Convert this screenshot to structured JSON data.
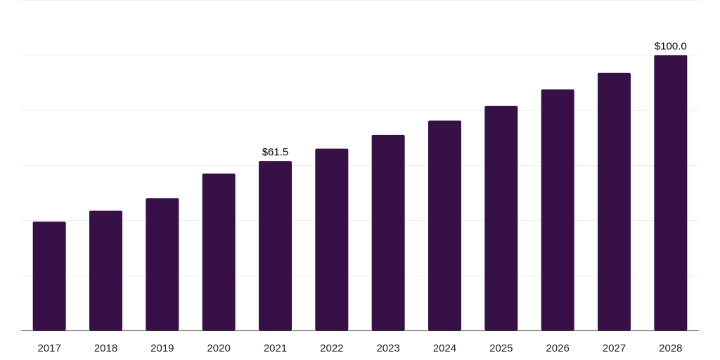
{
  "chart_data": {
    "type": "bar",
    "title": "",
    "xlabel": "",
    "ylabel": "",
    "categories": [
      "2017",
      "2018",
      "2019",
      "2020",
      "2021",
      "2022",
      "2023",
      "2024",
      "2025",
      "2026",
      "2027",
      "2028"
    ],
    "values": [
      39.5,
      43.5,
      48.0,
      57.0,
      61.5,
      66.0,
      71.0,
      76.2,
      81.5,
      87.5,
      93.5,
      100.0
    ],
    "data_labels": [
      "",
      "",
      "",
      "",
      "$61.5",
      "",
      "",
      "",
      "",
      "",
      "",
      "$100.0"
    ],
    "ylim": [
      0,
      120
    ],
    "grid": true,
    "legend": "none",
    "colors": {
      "bar": "#371048",
      "grid": "#efefef",
      "axis": "#333333",
      "text": "#222222"
    }
  }
}
